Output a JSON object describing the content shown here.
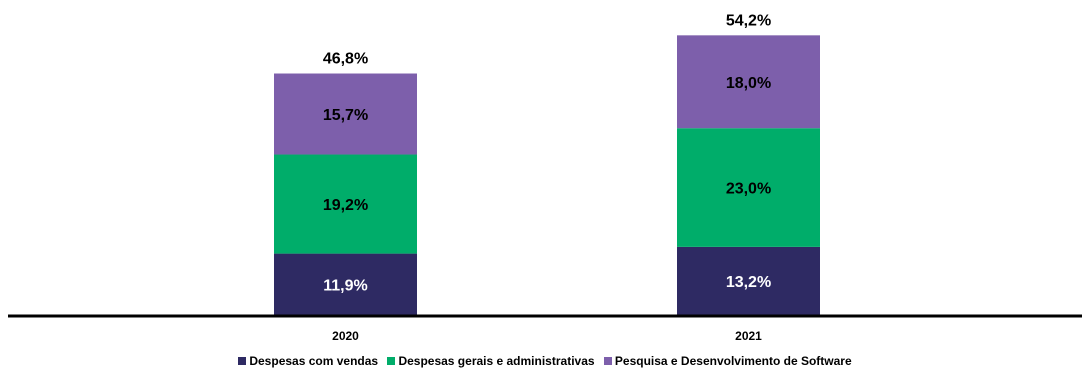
{
  "chart_data": {
    "type": "bar",
    "stacked": true,
    "categories": [
      "2020",
      "2021"
    ],
    "series": [
      {
        "name": "Despesas com vendas",
        "values": [
          11.9,
          13.2
        ],
        "labels": [
          "11,9%",
          "13,2%"
        ],
        "color": "#2e2a63",
        "label_color": "#ffffff"
      },
      {
        "name": "Despesas gerais e administrativas",
        "values": [
          19.2,
          23.0
        ],
        "labels": [
          "19,2%",
          "23,0%"
        ],
        "color": "#00ad6a",
        "label_color": "#000000"
      },
      {
        "name": "Pesquisa e Desenvolvimento de Software",
        "values": [
          15.7,
          18.0
        ],
        "labels": [
          "15,7%",
          "18,0%"
        ],
        "color": "#7d5fab",
        "label_color": "#000000"
      }
    ],
    "totals": [
      46.8,
      54.2
    ],
    "total_labels": [
      "46,8%",
      "54,2%"
    ],
    "ylim": [
      0,
      56
    ],
    "grid": false,
    "legend_position": "bottom"
  }
}
